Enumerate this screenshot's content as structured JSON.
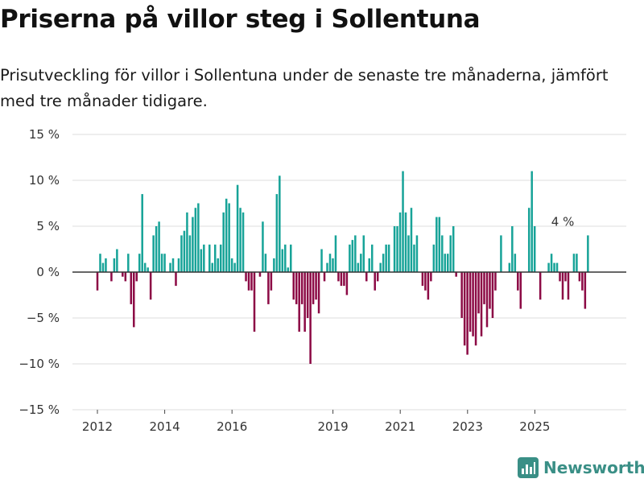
{
  "title": "Priserna på villor steg i Sollentuna",
  "subtitle": "Prisutveckling för villor i Sollentuna under de senaste tre månaderna, jämfört med tre månader tidigare.",
  "brand": "Newsworthy",
  "colors": {
    "positive": "#17a398",
    "negative": "#8c0a45",
    "grid": "#dddddd",
    "zero": "#333333",
    "brand": "#3a8f86"
  },
  "chart_data": {
    "type": "bar",
    "title": "Priserna på villor steg i Sollentuna",
    "xlabel": "",
    "ylabel": "",
    "ylim": [
      -15,
      15
    ],
    "y_ticks": [
      {
        "value": 15,
        "label": "15 %"
      },
      {
        "value": 10,
        "label": "10 %"
      },
      {
        "value": 5,
        "label": "5 %"
      },
      {
        "value": 0,
        "label": "0 %"
      },
      {
        "value": -5,
        "label": "−5 %"
      },
      {
        "value": -10,
        "label": "−10 %"
      },
      {
        "value": -15,
        "label": "−15 %"
      }
    ],
    "x_ticks": [
      {
        "value": 2012,
        "label": "2012"
      },
      {
        "value": 2014,
        "label": "2014"
      },
      {
        "value": 2016,
        "label": "2016"
      },
      {
        "value": 2019,
        "label": "2019"
      },
      {
        "value": 2021,
        "label": "2021"
      },
      {
        "value": 2023,
        "label": "2023"
      },
      {
        "value": 2025,
        "label": "2025"
      }
    ],
    "x_start": 2012.0,
    "x_step": 0.0833,
    "values": [
      -2,
      2,
      1,
      1.5,
      0,
      -1,
      1.5,
      2.5,
      0,
      -0.5,
      -1,
      2,
      -3.5,
      -6,
      -1,
      2,
      8.5,
      1,
      0.5,
      -3,
      4,
      5,
      5.5,
      2,
      2,
      0,
      1,
      1.5,
      -1.5,
      1.5,
      4,
      4.5,
      6.5,
      4,
      6,
      7,
      7.5,
      2.5,
      3,
      0,
      3,
      1,
      3,
      1.5,
      3,
      6.5,
      8,
      7.5,
      1.5,
      1,
      9.5,
      7,
      6.5,
      -1,
      -2,
      -2,
      -6.5,
      0,
      -0.5,
      5.5,
      2,
      -3.5,
      -2,
      1.5,
      8.5,
      10.5,
      2.5,
      3,
      0.5,
      3,
      -3,
      -3.5,
      -6.5,
      -3.5,
      -6.5,
      -5,
      -10,
      -3.5,
      -3,
      -4.5,
      2.5,
      -1,
      1,
      2,
      1.5,
      4,
      -1,
      -1.5,
      -1.5,
      -2.5,
      3,
      3.5,
      4,
      1,
      2,
      4,
      -1,
      1.5,
      3,
      -2,
      -1,
      1,
      2,
      3,
      3,
      0,
      5,
      5,
      6.5,
      11,
      6.5,
      4,
      7,
      3,
      4,
      0,
      -1.5,
      -2,
      -3,
      -1,
      3,
      6,
      6,
      4,
      2,
      2,
      4,
      5,
      -0.5,
      0,
      -5,
      -8,
      -9,
      -6.5,
      -7,
      -8,
      -4.5,
      -7,
      -3.5,
      -6,
      -4,
      -5,
      -2,
      0,
      4,
      0,
      0,
      1,
      5,
      2,
      -2,
      -4,
      0,
      0,
      7,
      11,
      5,
      0,
      -3,
      0,
      0,
      1,
      2,
      1,
      1,
      -1,
      -3,
      -1,
      -3,
      0,
      2,
      2,
      -1,
      -2,
      -4,
      4
    ],
    "annotations": [
      {
        "text": "4 %",
        "x": 2025.83,
        "y": 4
      }
    ]
  }
}
